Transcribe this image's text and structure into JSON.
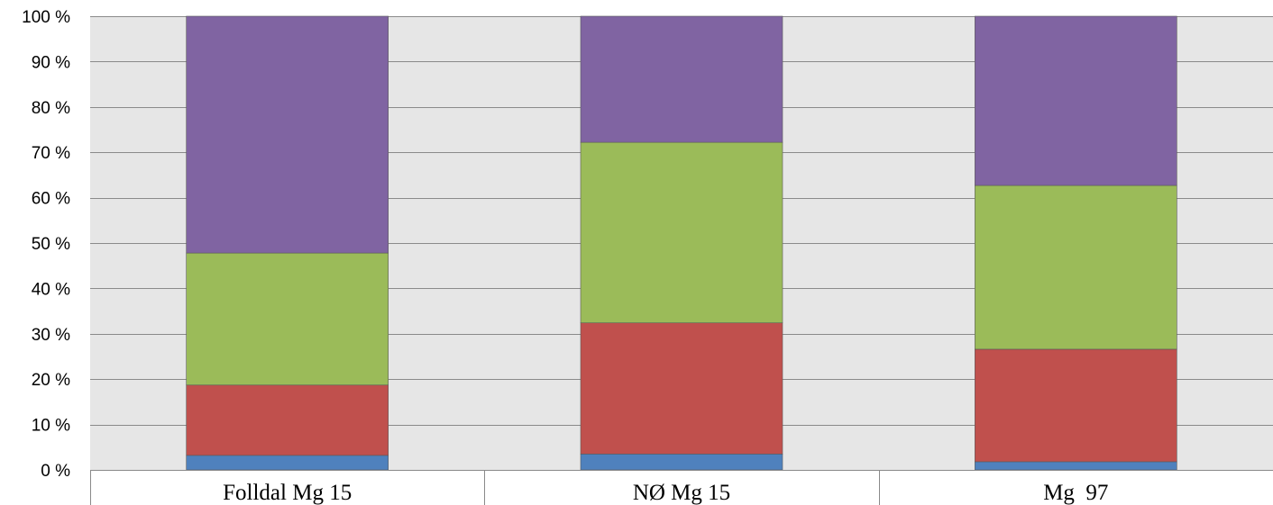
{
  "chart_data": {
    "type": "bar",
    "stacked": true,
    "percent_stacked": true,
    "categories": [
      "Folldal Mg 15",
      "NØ Mg 15",
      "Mg  97"
    ],
    "series": [
      {
        "color": "#4f81bd",
        "values": [
          3.2,
          3.5,
          1.8
        ]
      },
      {
        "color": "#c0504d",
        "values": [
          15.5,
          28.9,
          24.8
        ]
      },
      {
        "color": "#9bbb59",
        "values": [
          29.1,
          39.8,
          36.1
        ]
      },
      {
        "color": "#8064a2",
        "values": [
          52.2,
          27.8,
          37.3
        ]
      }
    ],
    "ylim": [
      0,
      100
    ],
    "yticks": [
      0,
      10,
      20,
      30,
      40,
      50,
      60,
      70,
      80,
      90,
      100
    ],
    "ytick_labels": [
      "0 %",
      "10 %",
      "20 %",
      "30 %",
      "40 %",
      "50 %",
      "60 %",
      "70 %",
      "80 %",
      "90 %",
      "100 %"
    ],
    "grid": true,
    "plot_background": "#e6e6e6",
    "title": "",
    "xlabel": "",
    "ylabel": ""
  }
}
